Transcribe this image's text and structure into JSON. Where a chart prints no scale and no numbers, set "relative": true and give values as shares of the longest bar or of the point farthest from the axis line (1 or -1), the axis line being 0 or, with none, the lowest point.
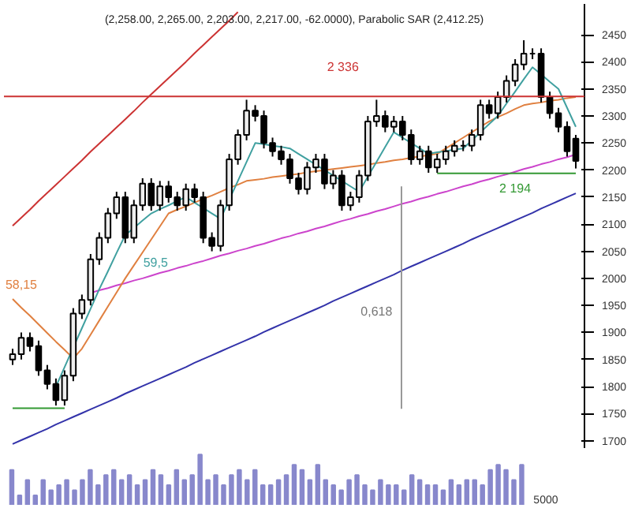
{
  "chart_data": [
    {
      "type": "candlestick",
      "title": "(2,258.00, 2,265.00, 2,203.00, 2,217.00, -62.0000), Parabolic SAR (2,412.25)",
      "categories": [
        null,
        null,
        null,
        null,
        null,
        null,
        null,
        null,
        null,
        null,
        null,
        null,
        null,
        null,
        null,
        null,
        null,
        null,
        null,
        null,
        null,
        null,
        null,
        null,
        null,
        null,
        null,
        null,
        null,
        null,
        null,
        null,
        null,
        null,
        null,
        null,
        null,
        null,
        null,
        null,
        null,
        null,
        null,
        null,
        null,
        null,
        null,
        null,
        null,
        null,
        null,
        null,
        null,
        null,
        null,
        null,
        null,
        null,
        null,
        null,
        null,
        null,
        null,
        null,
        null,
        null
      ],
      "ohlc": [
        [
          1850,
          1870,
          1840,
          1860
        ],
        [
          1860,
          1900,
          1850,
          1890
        ],
        [
          1890,
          1900,
          1865,
          1875
        ],
        [
          1875,
          1885,
          1820,
          1830
        ],
        [
          1830,
          1840,
          1795,
          1805
        ],
        [
          1805,
          1815,
          1765,
          1775
        ],
        [
          1775,
          1830,
          1765,
          1820
        ],
        [
          1820,
          1945,
          1810,
          1935
        ],
        [
          1935,
          1970,
          1925,
          1960
        ],
        [
          1960,
          2045,
          1950,
          2035
        ],
        [
          2035,
          2085,
          2025,
          2075
        ],
        [
          2075,
          2130,
          2065,
          2120
        ],
        [
          2120,
          2160,
          2110,
          2150
        ],
        [
          2150,
          2160,
          2065,
          2075
        ],
        [
          2075,
          2145,
          2065,
          2135
        ],
        [
          2135,
          2185,
          2125,
          2175
        ],
        [
          2175,
          2185,
          2125,
          2135
        ],
        [
          2135,
          2180,
          2125,
          2170
        ],
        [
          2170,
          2180,
          2140,
          2150
        ],
        [
          2150,
          2160,
          2125,
          2135
        ],
        [
          2135,
          2175,
          2125,
          2165
        ],
        [
          2165,
          2175,
          2140,
          2150
        ],
        [
          2150,
          2160,
          2065,
          2075
        ],
        [
          2075,
          2085,
          2050,
          2060
        ],
        [
          2060,
          2145,
          2050,
          2135
        ],
        [
          2135,
          2230,
          2125,
          2220
        ],
        [
          2220,
          2275,
          2210,
          2265
        ],
        [
          2265,
          2330,
          2255,
          2310
        ],
        [
          2310,
          2320,
          2290,
          2300
        ],
        [
          2300,
          2310,
          2240,
          2250
        ],
        [
          2250,
          2260,
          2225,
          2235
        ],
        [
          2235,
          2245,
          2210,
          2220
        ],
        [
          2220,
          2230,
          2175,
          2185
        ],
        [
          2185,
          2195,
          2155,
          2165
        ],
        [
          2165,
          2215,
          2155,
          2205
        ],
        [
          2205,
          2230,
          2195,
          2220
        ],
        [
          2220,
          2230,
          2165,
          2175
        ],
        [
          2175,
          2200,
          2165,
          2190
        ],
        [
          2190,
          2200,
          2125,
          2135
        ],
        [
          2135,
          2160,
          2125,
          2150
        ],
        [
          2150,
          2200,
          2140,
          2190
        ],
        [
          2190,
          2300,
          2180,
          2290
        ],
        [
          2290,
          2330,
          2280,
          2300
        ],
        [
          2300,
          2310,
          2270,
          2280
        ],
        [
          2280,
          2300,
          2270,
          2290
        ],
        [
          2290,
          2300,
          2255,
          2265
        ],
        [
          2265,
          2275,
          2210,
          2220
        ],
        [
          2220,
          2245,
          2210,
          2235
        ],
        [
          2235,
          2245,
          2195,
          2205
        ],
        [
          2205,
          2230,
          2195,
          2220
        ],
        [
          2220,
          2245,
          2210,
          2235
        ],
        [
          2235,
          2255,
          2225,
          2245
        ],
        [
          2245,
          2255,
          2235,
          2245
        ],
        [
          2245,
          2275,
          2235,
          2265
        ],
        [
          2265,
          2330,
          2255,
          2320
        ],
        [
          2320,
          2330,
          2295,
          2305
        ],
        [
          2305,
          2345,
          2295,
          2335
        ],
        [
          2335,
          2375,
          2325,
          2365
        ],
        [
          2365,
          2405,
          2355,
          2395
        ],
        [
          2395,
          2440,
          2385,
          2415
        ],
        [
          2415,
          2425,
          2405,
          2415
        ],
        [
          2415,
          2425,
          2325,
          2335
        ],
        [
          2335,
          2345,
          2295,
          2305
        ],
        [
          2305,
          2315,
          2270,
          2280
        ],
        [
          2280,
          2290,
          2225,
          2235
        ],
        [
          2258,
          2265,
          2203,
          2217
        ]
      ],
      "series": [
        {
          "type": "line",
          "color": "#cc3333",
          "values": [
            2097,
            2112,
            2127,
            2143,
            2158,
            2173,
            2188,
            2203,
            2218,
            2234,
            2249,
            2264,
            2279,
            2294,
            2309,
            2325,
            2340,
            2355,
            2370,
            2385,
            2400,
            2416,
            2431,
            2446,
            2461,
            2476,
            2492,
            null,
            null,
            null,
            null,
            null,
            null,
            null,
            null,
            null,
            null,
            null,
            null,
            null,
            null,
            null,
            null,
            null,
            null,
            null,
            null,
            null,
            null,
            null,
            null,
            null,
            null,
            null,
            null,
            null,
            null,
            null,
            null,
            null,
            null,
            null,
            null,
            null,
            null,
            null
          ]
        },
        {
          "type": "line",
          "color": "#3333aa",
          "values": [
            1694,
            1701,
            1708,
            1715,
            1722,
            1730,
            1737,
            1744,
            1751,
            1758,
            1765,
            1772,
            1779,
            1787,
            1794,
            1801,
            1808,
            1815,
            1822,
            1829,
            1836,
            1844,
            1851,
            1858,
            1865,
            1872,
            1879,
            1886,
            1893,
            1901,
            1908,
            1915,
            1922,
            1929,
            1936,
            1943,
            1950,
            1958,
            1965,
            1972,
            1979,
            1986,
            1993,
            2000,
            2007,
            2015,
            2022,
            2029,
            2036,
            2043,
            2050,
            2057,
            2064,
            2072,
            2079,
            2086,
            2093,
            2100,
            2107,
            2114,
            2121,
            2129,
            2136,
            2143,
            2150,
            2157
          ]
        },
        {
          "type": "line",
          "color": "#cc44cc",
          "values": [
            null,
            null,
            null,
            null,
            null,
            null,
            null,
            null,
            null,
            1973,
            1978,
            1982,
            1987,
            1991,
            1996,
            2000,
            2005,
            2010,
            2014,
            2019,
            2023,
            2028,
            2032,
            2037,
            2042,
            2046,
            2051,
            2055,
            2060,
            2064,
            2069,
            2074,
            2078,
            2083,
            2087,
            2092,
            2096,
            2101,
            2106,
            2110,
            2115,
            2119,
            2124,
            2128,
            2133,
            2138,
            2142,
            2147,
            2151,
            2156,
            2160,
            2165,
            2170,
            2174,
            2179,
            2183,
            2188,
            2192,
            2197,
            2202,
            2206,
            2211,
            2215,
            2220,
            2224,
            2229
          ]
        },
        {
          "type": "line",
          "color": "#339933",
          "values": [
            1760,
            1760,
            1760,
            1760,
            1760,
            1760,
            1760,
            null,
            null,
            null,
            null,
            null,
            null,
            null,
            null,
            null,
            null,
            null,
            null,
            null,
            null,
            null,
            null,
            null,
            null,
            null,
            null,
            null,
            null,
            null,
            null,
            null,
            null,
            null,
            null,
            null,
            null,
            null,
            null,
            null,
            null,
            null,
            null,
            null,
            null,
            null,
            null,
            null,
            null,
            null,
            null,
            null,
            null,
            null,
            null,
            null,
            null,
            null,
            null,
            null,
            null,
            null,
            null,
            null,
            null,
            null
          ]
        },
        {
          "type": "line",
          "color": "#339933",
          "values": [
            null,
            null,
            null,
            null,
            null,
            null,
            null,
            null,
            null,
            null,
            null,
            null,
            null,
            null,
            null,
            null,
            null,
            null,
            null,
            null,
            null,
            null,
            null,
            null,
            null,
            null,
            null,
            null,
            null,
            null,
            null,
            null,
            null,
            null,
            null,
            null,
            null,
            null,
            null,
            null,
            null,
            null,
            null,
            null,
            null,
            null,
            null,
            null,
            null,
            2194,
            2194,
            2194,
            2194,
            2194,
            2194,
            2194,
            2194,
            2194,
            2194,
            2194,
            2194,
            2194,
            2194,
            2194,
            2194,
            2194
          ]
        },
        {
          "type": "line",
          "color": "#e08040",
          "values": [
            1962,
            1946,
            1931,
            1915,
            1899,
            1883,
            1868,
            1852,
            1870,
            1896,
            1922,
            1948,
            1974,
            2000,
            2024,
            2048,
            2072,
            2096,
            2120,
            2127,
            2133,
            2140,
            2147,
            2153,
            2160,
            2167,
            2173,
            2180,
            2182,
            2184,
            2187,
            2189,
            2191,
            2193,
            2196,
            2198,
            2200,
            2202,
            2204,
            2206,
            2208,
            2210,
            2213,
            2215,
            2218,
            2220,
            2223,
            2225,
            2228,
            2230,
            2240,
            2250,
            2260,
            2270,
            2280,
            2290,
            2298,
            2305,
            2313,
            2320,
            2323,
            2325,
            2328,
            2330,
            2333,
            2335
          ]
        },
        {
          "type": "line",
          "color": "#40a0a0",
          "values": [
            null,
            null,
            null,
            null,
            null,
            1800,
            1836,
            1872,
            1908,
            1944,
            1980,
            2013,
            2047,
            2080,
            2093,
            2107,
            2120,
            2128,
            2135,
            2143,
            2150,
            2140,
            2130,
            2120,
            2110,
            2145,
            2180,
            2215,
            2250,
            2248,
            2245,
            2243,
            2240,
            2230,
            2220,
            2210,
            2200,
            2190,
            2180,
            2170,
            2160,
            2188,
            2215,
            2243,
            2270,
            2260,
            2250,
            2240,
            2230,
            2233,
            2235,
            2238,
            2240,
            2255,
            2270,
            2285,
            2300,
            2323,
            2345,
            2368,
            2390,
            2377,
            2363,
            2350,
            2315,
            2280
          ]
        }
      ],
      "ref_lines": [
        {
          "axis": "y",
          "value": 2336,
          "label": "2 336",
          "color": "#cc3333"
        }
      ],
      "annotations": [
        "2 194",
        "0,618",
        "59,5",
        "58,15"
      ],
      "ylim": [
        1685,
        2507
      ],
      "yticks": [
        1700,
        1750,
        1800,
        1850,
        1900,
        1950,
        2000,
        2050,
        2100,
        2150,
        2200,
        2250,
        2300,
        2350,
        2400,
        2450
      ],
      "tick_labels": "y"
    },
    {
      "type": "bar",
      "relative": true,
      "color": "#8888cc",
      "categories": [
        null,
        null,
        null,
        null,
        null,
        null,
        null,
        null,
        null,
        null,
        null,
        null,
        null,
        null,
        null,
        null,
        null,
        null,
        null,
        null,
        null,
        null,
        null,
        null,
        null,
        null,
        null,
        null,
        null,
        null,
        null,
        null,
        null,
        null,
        null,
        null,
        null,
        null,
        null,
        null,
        null,
        null,
        null,
        null,
        null,
        null,
        null,
        null,
        null,
        null,
        null,
        null,
        null,
        null,
        null,
        null,
        null,
        null,
        null,
        null,
        null,
        null,
        null,
        null,
        null,
        null
      ],
      "values": [
        0.7,
        0.2,
        0.5,
        0.2,
        0.5,
        0.3,
        0.4,
        0.5,
        0.3,
        0.5,
        0.7,
        0.4,
        0.6,
        0.7,
        0.5,
        0.6,
        0.4,
        0.5,
        0.7,
        0.6,
        0.4,
        0.7,
        0.5,
        0.6,
        1.0,
        0.5,
        0.6,
        0.4,
        0.6,
        0.7,
        0.5,
        0.7,
        0.4,
        0.4,
        0.5,
        0.6,
        0.8,
        0.7,
        0.5,
        0.8,
        0.5,
        0.4,
        0.3,
        0.5,
        0.6,
        0.4,
        0.3,
        0.5,
        0.4,
        0.4,
        0.3,
        0.6,
        0.5,
        0.4,
        0.4,
        0.3,
        0.5,
        0.4,
        0.5,
        0.5,
        0.4,
        0.7,
        0.8,
        0.7,
        0.5,
        0.8
      ],
      "annotations": [
        "5000"
      ]
    }
  ]
}
